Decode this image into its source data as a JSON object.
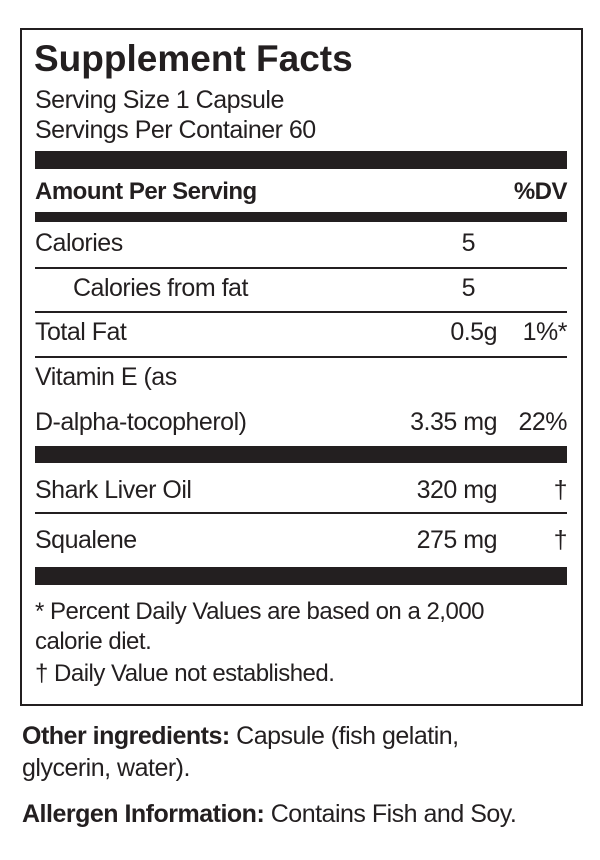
{
  "title": "Supplement Facts",
  "serving_size": "Serving Size 1 Capsule",
  "servings_per_container": "Servings Per Container 60",
  "header": {
    "amount": "Amount Per Serving",
    "dv": "%DV"
  },
  "rows": [
    {
      "name": "Calories",
      "amount": "5",
      "dv": ""
    },
    {
      "name": "Calories from fat",
      "amount": "5",
      "dv": ""
    },
    {
      "name": "Total Fat",
      "amount": "0.5g",
      "dv": "1%*"
    },
    {
      "name_line1": "Vitamin E (as",
      "name": "D-alpha-tocopherol)",
      "amount": "3.35 mg",
      "dv": "22%"
    },
    {
      "name": "Shark Liver Oil",
      "amount": "320 mg",
      "dv": "†"
    },
    {
      "name": "Squalene",
      "amount": "275 mg",
      "dv": "†"
    }
  ],
  "footnotes": {
    "line1": "* Percent Daily Values are based on a 2,000",
    "line2": "calorie diet.",
    "line3": "† Daily Value not established."
  },
  "other_ingredients": {
    "label": "Other ingredients:",
    "text1": " Capsule (fish gelatin,",
    "text2": "glycerin, water)."
  },
  "allergen": {
    "label": "Allergen Information:",
    "text": " Contains Fish and Soy."
  }
}
